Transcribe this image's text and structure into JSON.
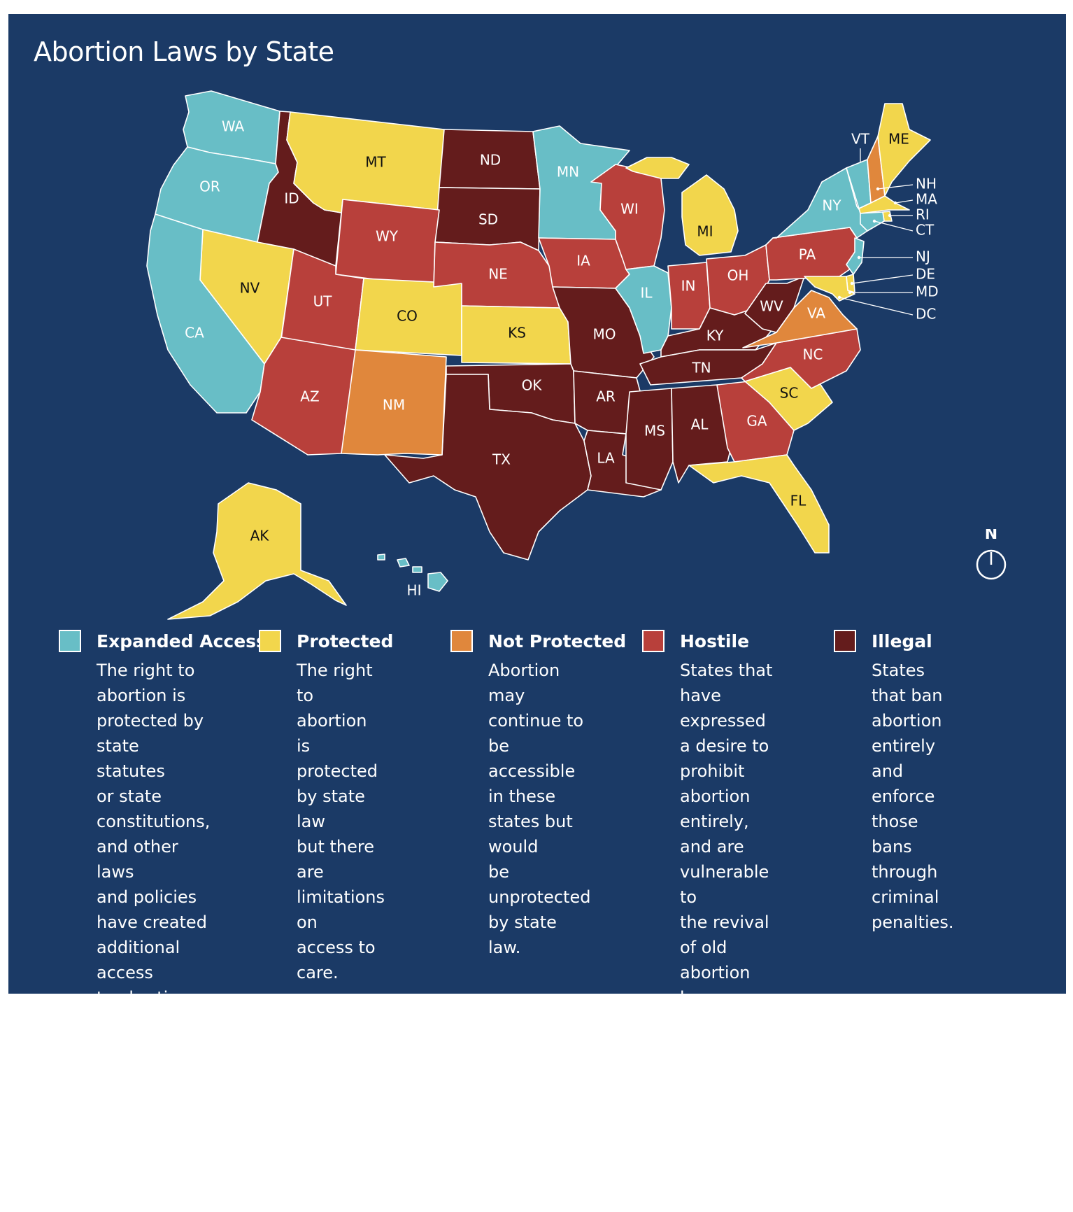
{
  "title": "Abortion Laws by State",
  "colors": {
    "background": "#1b3a66",
    "expanded": "#68bec6",
    "protected": "#f2d64c",
    "not_protected": "#e0873c",
    "hostile": "#b8403b",
    "illegal": "#641c1c"
  },
  "legend": [
    {
      "key": "expanded",
      "title": "Expanded Access",
      "desc": "The right to\nabortion is\nprotected by\nstate statutes\nor state\nconstitutions,\nand other laws\nand policies\nhave created\nadditional access\nto abortion care."
    },
    {
      "key": "protected",
      "title": "Protected",
      "desc": "The right to\nabortion is\nprotected\nby state law\nbut there are\nlimitations on\naccess to care."
    },
    {
      "key": "not_protected",
      "title": "Not Protected",
      "desc": "Abortion may\ncontinue to be\naccessible in these\nstates but would\nbe unprotected\nby state law."
    },
    {
      "key": "hostile",
      "title": "Hostile",
      "desc": "States that\nhave expressed\na desire to\nprohibit abortion\nentirely, and are\nvulnerable to\nthe revival of old\nabortion bans or\nthe enactment\nof new ones. No\nlegal protections\nfor abortion."
    },
    {
      "key": "illegal",
      "title": "Illegal",
      "desc": "States that ban\nabortion entirely\nand enforce\nthose bans\nthrough criminal\npenalties."
    }
  ],
  "states": {
    "WA": "expanded",
    "OR": "expanded",
    "CA": "expanded",
    "MN": "expanded",
    "IL": "expanded",
    "NY": "expanded",
    "VT": "expanded",
    "CT": "expanded",
    "NJ": "expanded",
    "HI": "expanded",
    "MT": "protected",
    "NV": "protected",
    "CO": "protected",
    "KS": "protected",
    "MI": "protected",
    "ME": "protected",
    "MA": "protected",
    "RI": "protected",
    "DE": "protected",
    "MD": "protected",
    "DC": "protected",
    "SC": "protected",
    "FL": "protected",
    "AK": "protected",
    "NM": "not_protected",
    "VA": "not_protected",
    "NH": "not_protected",
    "WY": "hostile",
    "UT": "hostile",
    "AZ": "hostile",
    "NE": "hostile",
    "IA": "hostile",
    "WI": "hostile",
    "IN": "hostile",
    "OH": "hostile",
    "PA": "hostile",
    "NC": "hostile",
    "GA": "hostile",
    "ID": "illegal",
    "ND": "illegal",
    "SD": "illegal",
    "OK": "illegal",
    "TX": "illegal",
    "MO": "illegal",
    "AR": "illegal",
    "LA": "illegal",
    "MS": "illegal",
    "AL": "illegal",
    "TN": "illegal",
    "KY": "illegal",
    "WV": "illegal"
  },
  "labels": {
    "WA": "WA",
    "OR": "OR",
    "CA": "CA",
    "ID": "ID",
    "NV": "NV",
    "MT": "MT",
    "WY": "WY",
    "UT": "UT",
    "CO": "CO",
    "AZ": "AZ",
    "NM": "NM",
    "ND": "ND",
    "SD": "SD",
    "NE": "NE",
    "KS": "KS",
    "OK": "OK",
    "TX": "TX",
    "MN": "MN",
    "IA": "IA",
    "MO": "MO",
    "AR": "AR",
    "LA": "LA",
    "WI": "WI",
    "IL": "IL",
    "MI": "MI",
    "IN": "IN",
    "OH": "OH",
    "KY": "KY",
    "TN": "TN",
    "MS": "MS",
    "AL": "AL",
    "GA": "GA",
    "FL": "FL",
    "SC": "SC",
    "NC": "NC",
    "VA": "VA",
    "WV": "WV",
    "PA": "PA",
    "NY": "NY",
    "ME": "ME",
    "VT": "VT",
    "NH": "NH",
    "MA": "MA",
    "RI": "RI",
    "CT": "CT",
    "NJ": "NJ",
    "DE": "DE",
    "MD": "MD",
    "DC": "DC",
    "AK": "AK",
    "HI": "HI"
  },
  "compass": "N"
}
